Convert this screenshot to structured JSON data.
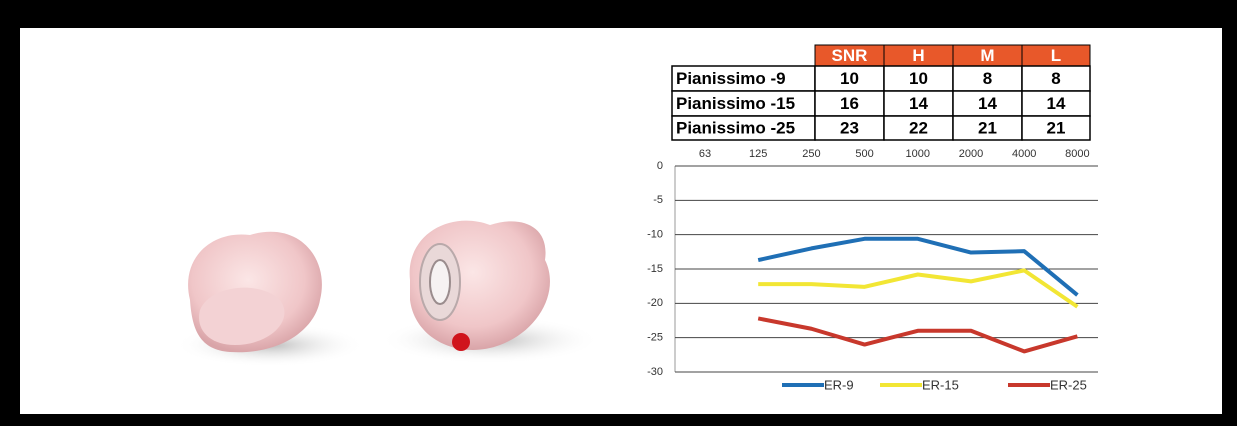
{
  "table": {
    "columns": [
      "SNR",
      "H",
      "M",
      "L"
    ],
    "rows": [
      {
        "label": "Pianissimo -9",
        "values": [
          10,
          10,
          8,
          8
        ]
      },
      {
        "label": "Pianissimo -15",
        "values": [
          16,
          14,
          14,
          14
        ]
      },
      {
        "label": "Pianissimo -25",
        "values": [
          23,
          22,
          21,
          21
        ]
      }
    ]
  },
  "chart_data": {
    "type": "line",
    "categories": [
      "63",
      "125",
      "250",
      "500",
      "1000",
      "2000",
      "4000",
      "8000"
    ],
    "series": [
      {
        "name": "ER-9",
        "color": "#1f6fb5",
        "values": [
          null,
          -13.7,
          -12,
          -10.6,
          -10.6,
          -12.6,
          -12.4,
          -18.8
        ]
      },
      {
        "name": "ER-15",
        "color": "#f2e634",
        "values": [
          null,
          -17.2,
          -17.2,
          -17.6,
          -15.8,
          -16.8,
          -15.2,
          -20.5
        ]
      },
      {
        "name": "ER-25",
        "color": "#c8382c",
        "values": [
          null,
          -22.2,
          -23.7,
          -26,
          -24,
          -24,
          -27,
          -24.8
        ]
      }
    ],
    "ylim": [
      -30,
      0
    ],
    "yticks": [
      0,
      -5,
      -10,
      -15,
      -20,
      -25,
      -30
    ],
    "grid": true
  }
}
